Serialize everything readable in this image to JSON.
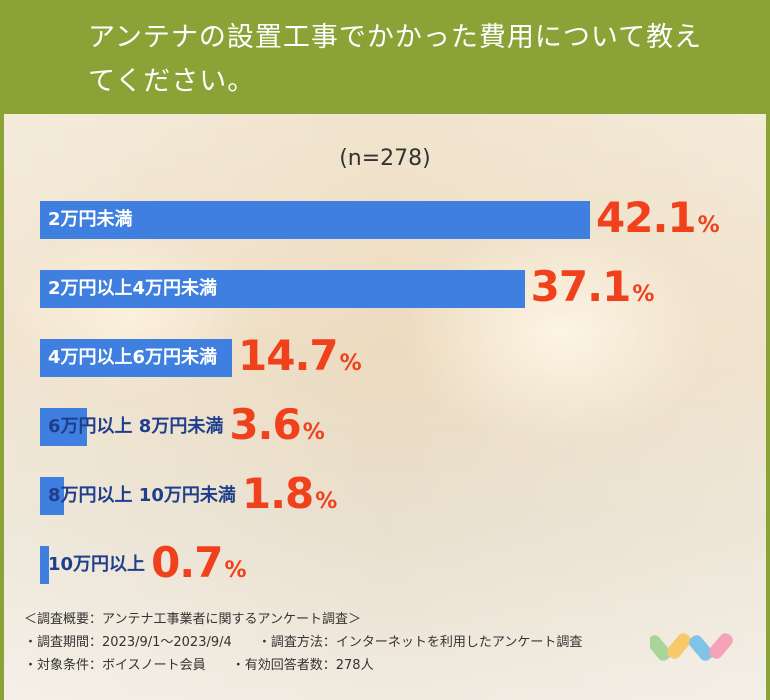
{
  "title": "アンテナの設置工事でかかった費用について教えてください。",
  "sample_size": "(n=278)",
  "chart_data": {
    "type": "bar",
    "orientation": "horizontal",
    "title": "アンテナの設置工事でかかった費用について教えてください。",
    "categories": [
      "2万円未満",
      "2万円以上4万円未満",
      "4万円以上6万円未満",
      "6万円以上 8万円未満",
      "8万円以上 10万円未満",
      "10万円以上"
    ],
    "values": [
      42.1,
      37.1,
      14.7,
      3.6,
      1.8,
      0.7
    ],
    "value_suffix": "%",
    "xlim": [
      0,
      42.1
    ],
    "bar_color": "#3f7fe0",
    "value_color": "#f0411c",
    "grid": false,
    "legend": "none"
  },
  "footer": {
    "heading": "＜調査概要：アンテナ工事業者に関するアンケート調査＞",
    "period": "・調査期間：2023/9/1〜2023/9/4",
    "method": "・調査方法：インターネットを利用したアンケート調査",
    "target": "・対象条件：ボイスノート会員",
    "respondents": "・有効回答者数：278人"
  },
  "colors": {
    "header": "#8ba236",
    "bar": "#3f7fe0",
    "value": "#f0411c"
  },
  "logo_icon": "colored-stripes-logo-icon"
}
